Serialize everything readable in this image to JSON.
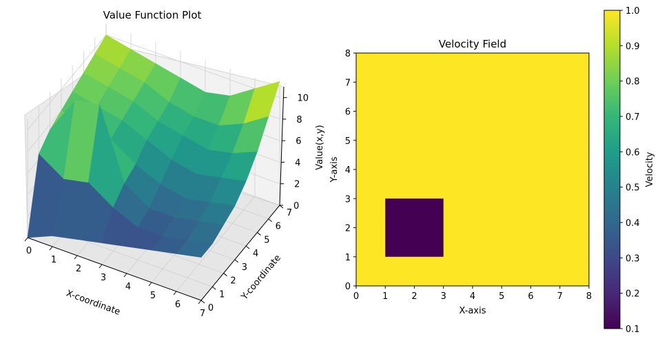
{
  "chart_data": [
    {
      "type": "surface3d",
      "title": "Value Function Plot",
      "xlabel": "X-coordinate",
      "ylabel": "Y-coordinate",
      "zlabel": "Value(x,y)",
      "x_ticks": [
        "0",
        "1",
        "2",
        "3",
        "4",
        "5",
        "6",
        "7"
      ],
      "y_ticks": [
        "0",
        "1",
        "2",
        "3",
        "4",
        "5",
        "6",
        "7"
      ],
      "z_ticks": [
        "0",
        "2",
        "4",
        "6",
        "8",
        "10"
      ],
      "xlim": [
        0,
        7
      ],
      "ylim": [
        0,
        7
      ],
      "zlim": [
        0,
        11
      ],
      "colormap": "viridis",
      "x": [
        0,
        1,
        2,
        3,
        4,
        5,
        6,
        7
      ],
      "y": [
        0,
        1,
        2,
        3,
        4,
        5,
        6,
        7
      ],
      "z": [
        [
          0.0,
          6.5,
          7.5,
          8.0,
          8.5,
          9.0,
          9.5,
          10.0
        ],
        [
          1.0,
          5.0,
          11.0,
          7.5,
          8.0,
          8.5,
          9.0,
          9.5
        ],
        [
          1.5,
          5.5,
          11.5,
          7.0,
          7.5,
          8.0,
          8.5,
          9.0
        ],
        [
          2.0,
          4.0,
          5.0,
          5.5,
          6.5,
          7.0,
          7.5,
          8.5
        ],
        [
          2.5,
          3.0,
          3.5,
          4.5,
          5.5,
          6.5,
          7.0,
          8.0
        ],
        [
          3.0,
          3.0,
          3.5,
          4.0,
          5.0,
          6.0,
          7.0,
          8.5
        ],
        [
          3.5,
          3.5,
          4.0,
          4.5,
          5.5,
          6.5,
          8.0,
          10.0
        ],
        [
          4.0,
          4.0,
          4.5,
          5.0,
          6.0,
          7.5,
          9.5,
          11.5
        ]
      ]
    },
    {
      "type": "heatmap",
      "title": "Velocity Field",
      "xlabel": "X-axis",
      "ylabel": "Y-axis",
      "x_ticks": [
        "0",
        "1",
        "2",
        "3",
        "4",
        "5",
        "6",
        "7",
        "8"
      ],
      "y_ticks": [
        "0",
        "1",
        "2",
        "3",
        "4",
        "5",
        "6",
        "7",
        "8"
      ],
      "xlim": [
        0,
        8
      ],
      "ylim": [
        0,
        8
      ],
      "background_value": 1.0,
      "regions": [
        {
          "x0": 1,
          "x1": 3,
          "y0": 1,
          "y1": 3,
          "value": 0.1
        }
      ],
      "colorbar": {
        "label": "Velocity",
        "range": [
          0.1,
          1.0
        ],
        "ticks": [
          "0.1",
          "0.2",
          "0.3",
          "0.4",
          "0.5",
          "0.6",
          "0.7",
          "0.8",
          "0.9",
          "1.0"
        ],
        "colormap": "viridis"
      }
    }
  ]
}
